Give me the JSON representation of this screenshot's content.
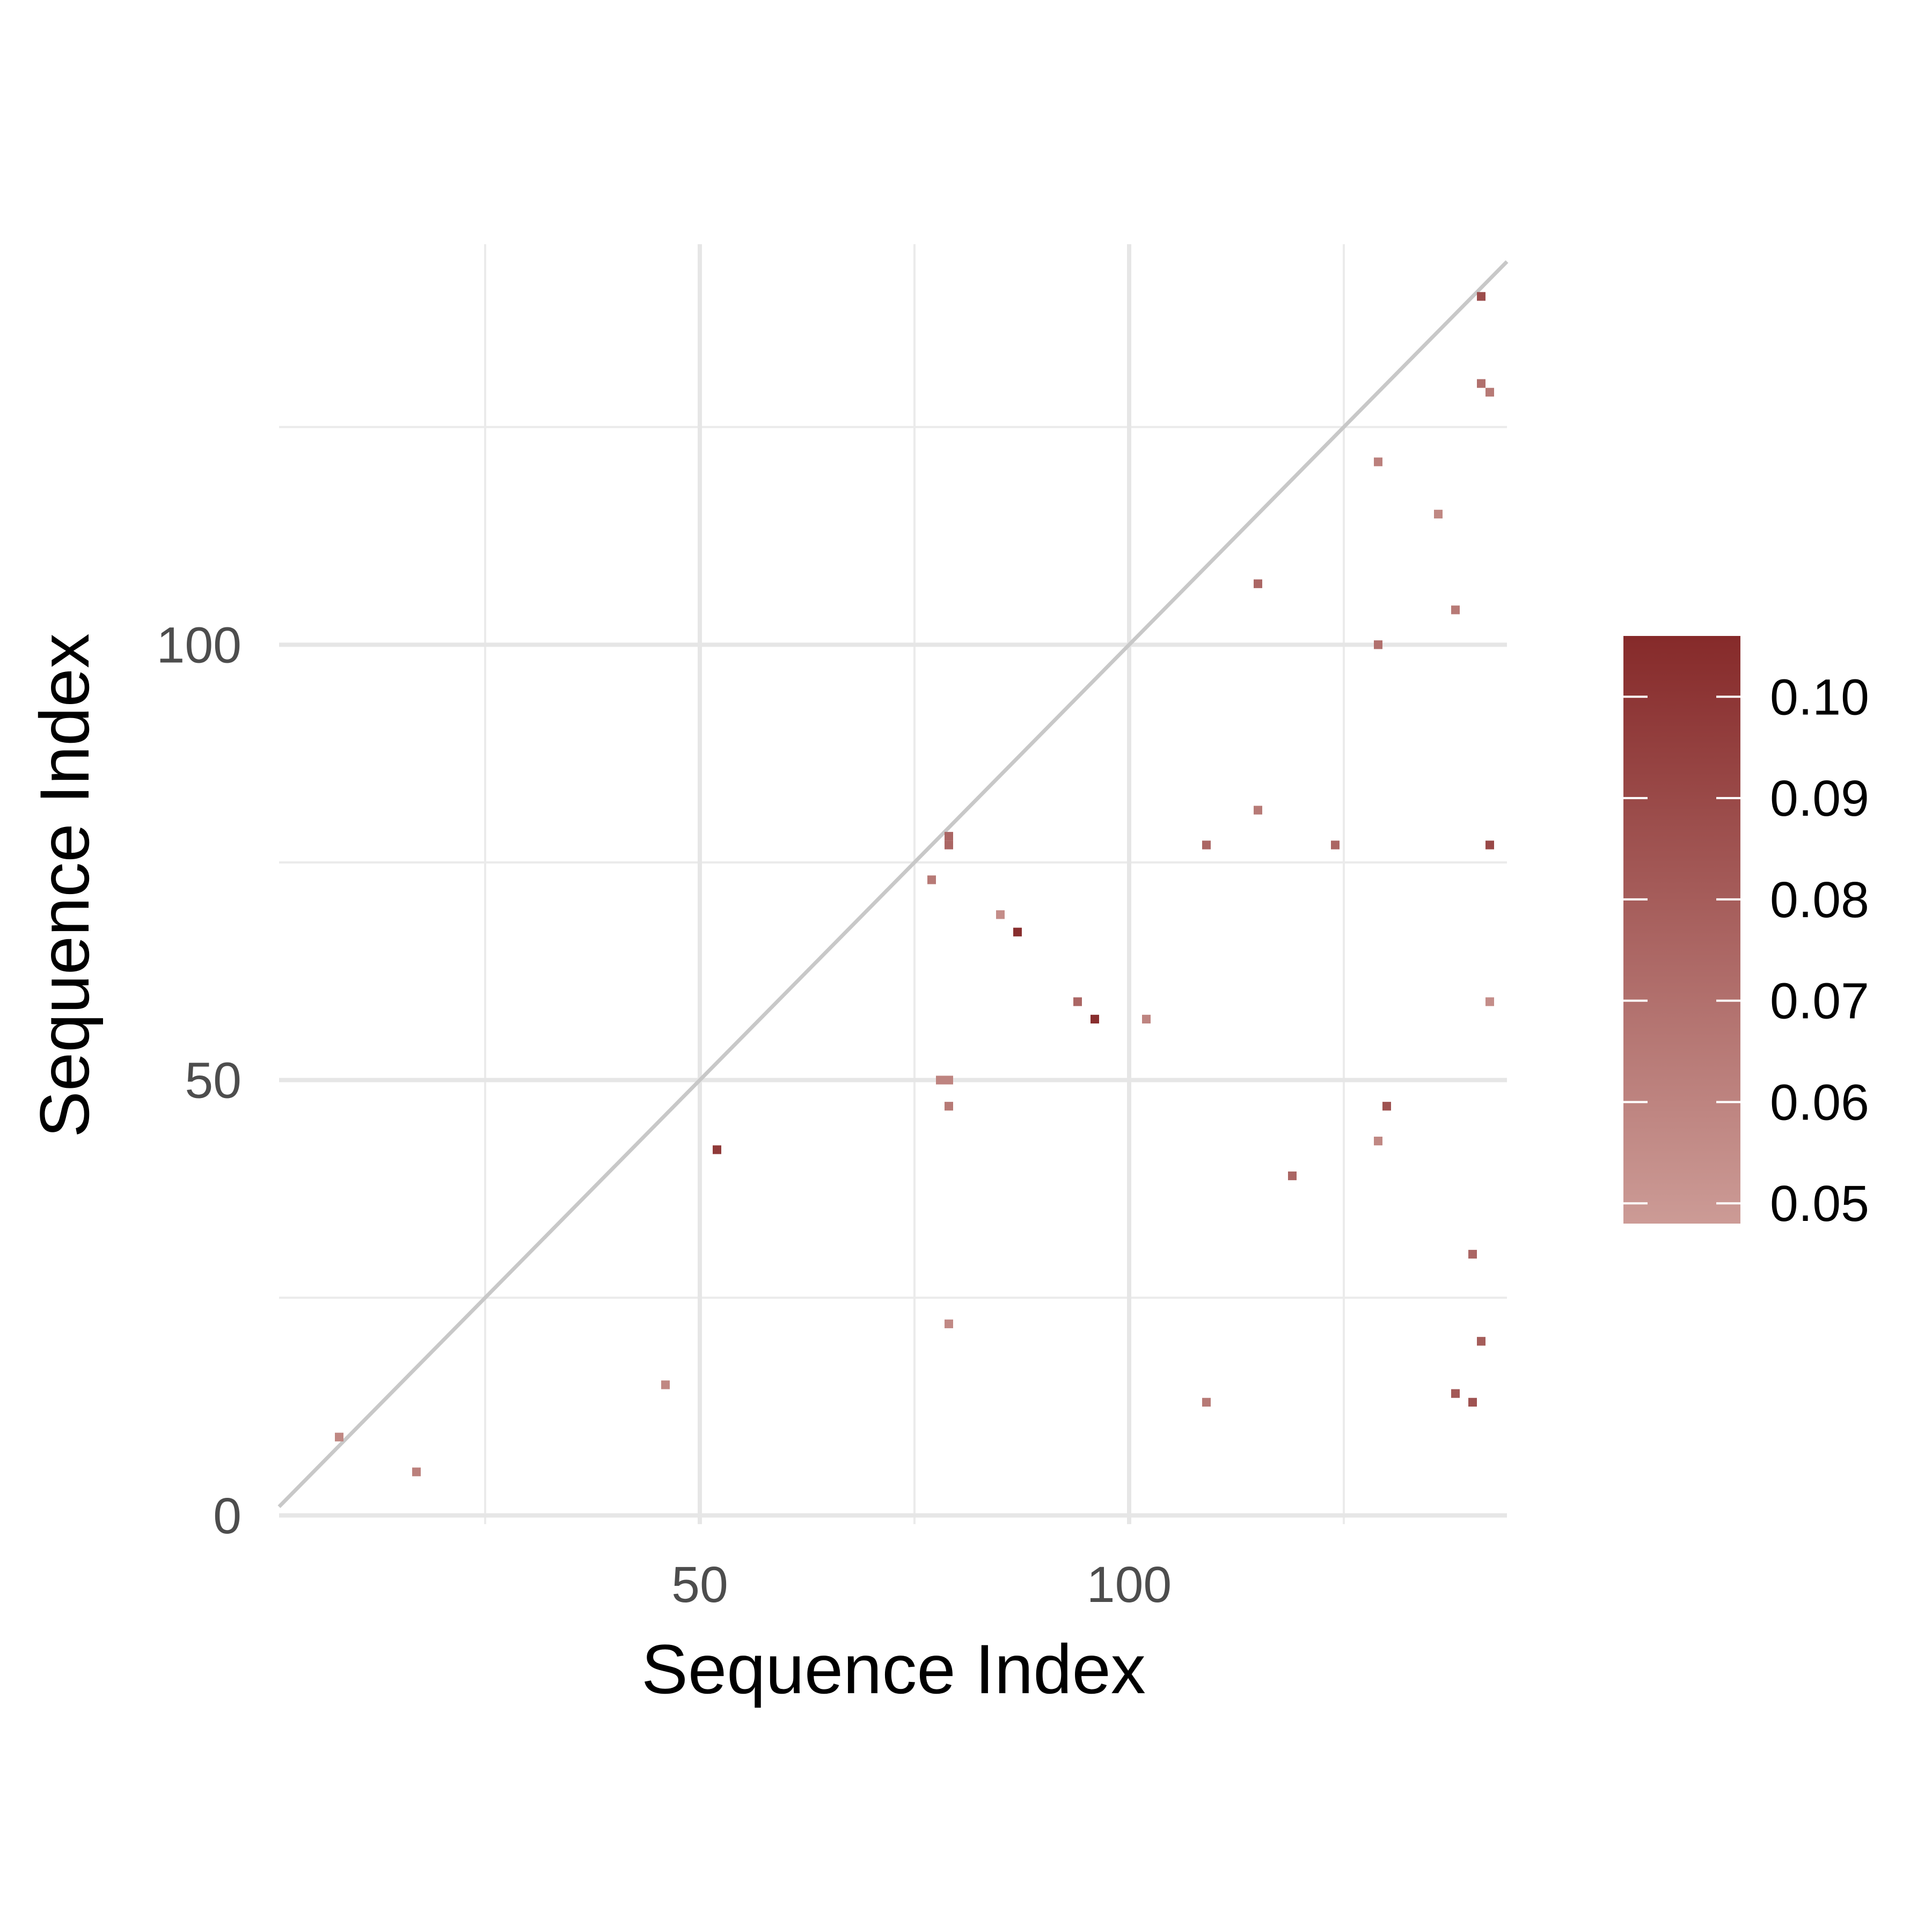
{
  "chart_data": {
    "type": "heatmap",
    "xlabel": "Sequence Index",
    "ylabel": "Sequence Index",
    "xlim": [
      1,
      144
    ],
    "ylim": [
      -1,
      146
    ],
    "x_major_ticks": [
      50,
      100
    ],
    "x_minor_ticks": [
      25,
      75,
      125
    ],
    "y_major_ticks": [
      0,
      50,
      100
    ],
    "y_minor_ticks": [
      25,
      75,
      125
    ],
    "grid": true,
    "diagonal_reference_line": true,
    "colorbar": {
      "min": 0.048,
      "max": 0.106,
      "ticks": [
        0.05,
        0.06,
        0.07,
        0.08,
        0.09,
        0.1
      ],
      "tick_labels": [
        "0.05",
        "0.06",
        "0.07",
        "0.08",
        "0.09",
        "0.10"
      ],
      "low_color": "#cc9b96",
      "high_color": "#862a2a",
      "position": "right"
    },
    "cells": [
      {
        "x": 8,
        "y": 9,
        "value": 0.058
      },
      {
        "x": 17,
        "y": 5,
        "value": 0.062
      },
      {
        "x": 46,
        "y": 15,
        "value": 0.058
      },
      {
        "x": 52,
        "y": 42,
        "value": 0.098
      },
      {
        "x": 77,
        "y": 73,
        "value": 0.065
      },
      {
        "x": 79,
        "y": 77,
        "value": 0.075
      },
      {
        "x": 79,
        "y": 78,
        "value": 0.075
      },
      {
        "x": 78,
        "y": 50,
        "value": 0.06
      },
      {
        "x": 79,
        "y": 50,
        "value": 0.06
      },
      {
        "x": 79,
        "y": 47,
        "value": 0.065
      },
      {
        "x": 79,
        "y": 22,
        "value": 0.057
      },
      {
        "x": 85,
        "y": 69,
        "value": 0.055
      },
      {
        "x": 87,
        "y": 67,
        "value": 0.104
      },
      {
        "x": 94,
        "y": 59,
        "value": 0.075
      },
      {
        "x": 96,
        "y": 57,
        "value": 0.104
      },
      {
        "x": 102,
        "y": 57,
        "value": 0.06
      },
      {
        "x": 109,
        "y": 77,
        "value": 0.075
      },
      {
        "x": 109,
        "y": 13,
        "value": 0.065
      },
      {
        "x": 115,
        "y": 107,
        "value": 0.075
      },
      {
        "x": 115,
        "y": 81,
        "value": 0.065
      },
      {
        "x": 119,
        "y": 39,
        "value": 0.075
      },
      {
        "x": 124,
        "y": 77,
        "value": 0.075
      },
      {
        "x": 129,
        "y": 121,
        "value": 0.062
      },
      {
        "x": 129,
        "y": 100,
        "value": 0.07
      },
      {
        "x": 130,
        "y": 47,
        "value": 0.085
      },
      {
        "x": 129,
        "y": 43,
        "value": 0.058
      },
      {
        "x": 136,
        "y": 115,
        "value": 0.058
      },
      {
        "x": 138,
        "y": 104,
        "value": 0.065
      },
      {
        "x": 138,
        "y": 14,
        "value": 0.082
      },
      {
        "x": 140,
        "y": 30,
        "value": 0.075
      },
      {
        "x": 140,
        "y": 13,
        "value": 0.085
      },
      {
        "x": 141,
        "y": 140,
        "value": 0.088
      },
      {
        "x": 141,
        "y": 130,
        "value": 0.07
      },
      {
        "x": 142,
        "y": 129,
        "value": 0.065
      },
      {
        "x": 141,
        "y": 20,
        "value": 0.08
      },
      {
        "x": 142,
        "y": 77,
        "value": 0.09
      },
      {
        "x": 142,
        "y": 59,
        "value": 0.055
      }
    ]
  }
}
